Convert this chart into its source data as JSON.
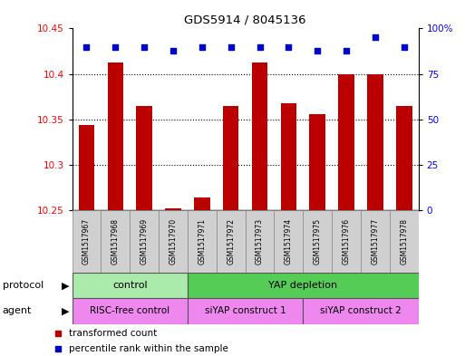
{
  "title": "GDS5914 / 8045136",
  "samples": [
    "GSM1517967",
    "GSM1517968",
    "GSM1517969",
    "GSM1517970",
    "GSM1517971",
    "GSM1517972",
    "GSM1517973",
    "GSM1517974",
    "GSM1517975",
    "GSM1517976",
    "GSM1517977",
    "GSM1517978"
  ],
  "bar_values": [
    10.344,
    10.413,
    10.365,
    10.252,
    10.264,
    10.365,
    10.413,
    10.368,
    10.356,
    10.4,
    10.4,
    10.365
  ],
  "dot_values": [
    90,
    90,
    90,
    88,
    90,
    90,
    90,
    90,
    88,
    88,
    95,
    90
  ],
  "bar_color": "#bb0000",
  "dot_color": "#0000cc",
  "ylim_left": [
    10.25,
    10.45
  ],
  "ylim_right": [
    0,
    100
  ],
  "yticks_left": [
    10.25,
    10.3,
    10.35,
    10.4,
    10.45
  ],
  "yticks_right": [
    0,
    25,
    50,
    75,
    100
  ],
  "ytick_labels_right": [
    "0",
    "25",
    "50",
    "75",
    "100%"
  ],
  "protocol_groups": [
    {
      "label": "control",
      "start": 0,
      "end": 4,
      "color": "#aaeaaa"
    },
    {
      "label": "YAP depletion",
      "start": 4,
      "end": 12,
      "color": "#55cc55"
    }
  ],
  "agent_groups": [
    {
      "label": "RISC-free control",
      "start": 0,
      "end": 4,
      "color": "#ee88ee"
    },
    {
      "label": "siYAP construct 1",
      "start": 4,
      "end": 8,
      "color": "#ee88ee"
    },
    {
      "label": "siYAP construct 2",
      "start": 8,
      "end": 12,
      "color": "#ee88ee"
    }
  ],
  "protocol_label": "protocol",
  "agent_label": "agent",
  "legend_bar_label": "transformed count",
  "legend_dot_label": "percentile rank within the sample",
  "background_color": "#ffffff"
}
